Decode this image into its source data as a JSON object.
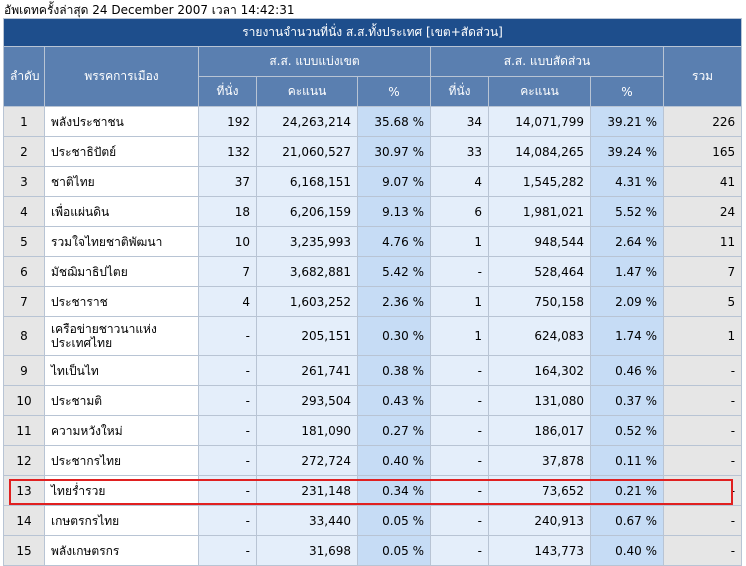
{
  "update": {
    "label": "อัพเดทครั้งล่าสุด",
    "date": "24 December 2007",
    "time_label": "เวลา",
    "time": "14:42:31"
  },
  "table": {
    "title": "รายงานจำนวนที่นั่ง ส.ส.ทั้งประเทศ [เขต+สัดส่วน]",
    "headers": {
      "rank": "ลำดับ",
      "party": "พรรคการเมือง",
      "district_group": "ส.ส. แบบแบ่งเขต",
      "proportional_group": "ส.ส. แบบสัดส่วน",
      "total": "รวม",
      "seats": "ที่นั่ง",
      "votes": "คะแนน",
      "pct": "%"
    },
    "rows": [
      {
        "rank": "1",
        "party": "พลังประชาชน",
        "d_seats": "192",
        "d_votes": "24,263,214",
        "d_pct": "35.68 %",
        "p_seats": "34",
        "p_votes": "14,071,799",
        "p_pct": "39.21 %",
        "total": "226"
      },
      {
        "rank": "2",
        "party": "ประชาธิปัตย์",
        "d_seats": "132",
        "d_votes": "21,060,527",
        "d_pct": "30.97 %",
        "p_seats": "33",
        "p_votes": "14,084,265",
        "p_pct": "39.24 %",
        "total": "165"
      },
      {
        "rank": "3",
        "party": "ชาติไทย",
        "d_seats": "37",
        "d_votes": "6,168,151",
        "d_pct": "9.07 %",
        "p_seats": "4",
        "p_votes": "1,545,282",
        "p_pct": "4.31 %",
        "total": "41"
      },
      {
        "rank": "4",
        "party": "เพื่อแผ่นดิน",
        "d_seats": "18",
        "d_votes": "6,206,159",
        "d_pct": "9.13 %",
        "p_seats": "6",
        "p_votes": "1,981,021",
        "p_pct": "5.52 %",
        "total": "24"
      },
      {
        "rank": "5",
        "party": "รวมใจไทยชาติพัฒนา",
        "d_seats": "10",
        "d_votes": "3,235,993",
        "d_pct": "4.76 %",
        "p_seats": "1",
        "p_votes": "948,544",
        "p_pct": "2.64 %",
        "total": "11"
      },
      {
        "rank": "6",
        "party": "มัชฌิมาธิปไตย",
        "d_seats": "7",
        "d_votes": "3,682,881",
        "d_pct": "5.42 %",
        "p_seats": "-",
        "p_votes": "528,464",
        "p_pct": "1.47 %",
        "total": "7"
      },
      {
        "rank": "7",
        "party": "ประชาราช",
        "d_seats": "4",
        "d_votes": "1,603,252",
        "d_pct": "2.36 %",
        "p_seats": "1",
        "p_votes": "750,158",
        "p_pct": "2.09 %",
        "total": "5"
      },
      {
        "rank": "8",
        "party": "เครือข่ายชาวนาแห่งประเทศไทย",
        "d_seats": "-",
        "d_votes": "205,151",
        "d_pct": "0.30 %",
        "p_seats": "1",
        "p_votes": "624,083",
        "p_pct": "1.74 %",
        "total": "1"
      },
      {
        "rank": "9",
        "party": "ไทเป็นไท",
        "d_seats": "-",
        "d_votes": "261,741",
        "d_pct": "0.38 %",
        "p_seats": "-",
        "p_votes": "164,302",
        "p_pct": "0.46 %",
        "total": "-"
      },
      {
        "rank": "10",
        "party": "ประชามติ",
        "d_seats": "-",
        "d_votes": "293,504",
        "d_pct": "0.43 %",
        "p_seats": "-",
        "p_votes": "131,080",
        "p_pct": "0.37 %",
        "total": "-"
      },
      {
        "rank": "11",
        "party": "ความหวังใหม่",
        "d_seats": "-",
        "d_votes": "181,090",
        "d_pct": "0.27 %",
        "p_seats": "-",
        "p_votes": "186,017",
        "p_pct": "0.52 %",
        "total": "-"
      },
      {
        "rank": "12",
        "party": "ประชากรไทย",
        "d_seats": "-",
        "d_votes": "272,724",
        "d_pct": "0.40 %",
        "p_seats": "-",
        "p_votes": "37,878",
        "p_pct": "0.11 %",
        "total": "-"
      },
      {
        "rank": "13",
        "party": "ไทยร่ำรวย",
        "d_seats": "-",
        "d_votes": "231,148",
        "d_pct": "0.34 %",
        "p_seats": "-",
        "p_votes": "73,652",
        "p_pct": "0.21 %",
        "total": "-"
      },
      {
        "rank": "14",
        "party": "เกษตรกรไทย",
        "d_seats": "-",
        "d_votes": "33,440",
        "d_pct": "0.05 %",
        "p_seats": "-",
        "p_votes": "240,913",
        "p_pct": "0.67 %",
        "total": "-"
      },
      {
        "rank": "15",
        "party": "พลังเกษตรกร",
        "d_seats": "-",
        "d_votes": "31,698",
        "d_pct": "0.05 %",
        "p_seats": "-",
        "p_votes": "143,773",
        "p_pct": "0.40 %",
        "total": "-"
      }
    ]
  },
  "highlight_color": "#e02020"
}
